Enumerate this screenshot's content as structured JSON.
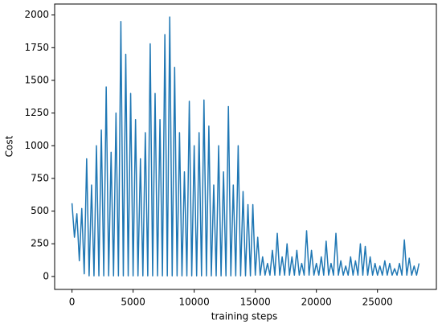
{
  "chart_data": {
    "type": "line",
    "xlabel": "training steps",
    "ylabel": "Cost",
    "color": "#1f77b4",
    "x": [
      0,
      200,
      400,
      600,
      800,
      1000,
      1200,
      1400,
      1600,
      1800,
      2000,
      2200,
      2400,
      2600,
      2800,
      3000,
      3200,
      3400,
      3600,
      3800,
      4000,
      4200,
      4400,
      4600,
      4800,
      5000,
      5200,
      5400,
      5600,
      5800,
      6000,
      6200,
      6400,
      6600,
      6800,
      7000,
      7200,
      7400,
      7600,
      7800,
      8000,
      8200,
      8400,
      8600,
      8800,
      9000,
      9200,
      9400,
      9600,
      9800,
      10000,
      10200,
      10400,
      10600,
      10800,
      11000,
      11200,
      11400,
      11600,
      11800,
      12000,
      12200,
      12400,
      12600,
      12800,
      13000,
      13200,
      13400,
      13600,
      13800,
      14000,
      14200,
      14400,
      14600,
      14800,
      15000,
      15200,
      15400,
      15600,
      15800,
      16000,
      16200,
      16400,
      16600,
      16800,
      17000,
      17200,
      17400,
      17600,
      17800,
      18000,
      18200,
      18400,
      18600,
      18800,
      19000,
      19200,
      19400,
      19600,
      19800,
      20000,
      20200,
      20400,
      20600,
      20800,
      21000,
      21200,
      21400,
      21600,
      21800,
      22000,
      22200,
      22400,
      22600,
      22800,
      23000,
      23200,
      23400,
      23600,
      23800,
      24000,
      24200,
      24400,
      24600,
      24800,
      25000,
      25200,
      25400,
      25600,
      25800,
      26000,
      26200,
      26400,
      26600,
      26800,
      27000,
      27200,
      27400,
      27600,
      27800,
      28000,
      28200,
      28400
    ],
    "values": [
      560,
      300,
      480,
      120,
      520,
      20,
      900,
      5,
      700,
      5,
      1000,
      5,
      1120,
      5,
      1450,
      5,
      950,
      5,
      1250,
      5,
      1950,
      5,
      1700,
      5,
      1400,
      5,
      1200,
      5,
      900,
      5,
      1100,
      5,
      1780,
      5,
      1400,
      5,
      1200,
      5,
      1850,
      5,
      1985,
      5,
      1600,
      5,
      1100,
      5,
      800,
      5,
      1340,
      5,
      1000,
      5,
      1100,
      5,
      1350,
      5,
      1150,
      5,
      700,
      5,
      1000,
      5,
      800,
      5,
      1300,
      5,
      700,
      5,
      1000,
      5,
      650,
      5,
      550,
      5,
      550,
      10,
      300,
      10,
      150,
      10,
      100,
      10,
      200,
      10,
      330,
      10,
      150,
      10,
      250,
      10,
      150,
      10,
      200,
      10,
      100,
      10,
      350,
      10,
      200,
      10,
      100,
      10,
      150,
      10,
      270,
      10,
      100,
      10,
      330,
      10,
      120,
      10,
      80,
      10,
      150,
      10,
      120,
      10,
      250,
      10,
      230,
      10,
      150,
      10,
      100,
      10,
      80,
      10,
      120,
      10,
      100,
      10,
      60,
      10,
      100,
      10,
      280,
      10,
      140,
      10,
      80,
      10,
      100
    ],
    "xlim": [
      -1420,
      29820
    ],
    "ylim": [
      -99,
      2084
    ],
    "xticks": [
      0,
      5000,
      10000,
      15000,
      20000,
      25000
    ],
    "yticks": [
      0,
      250,
      500,
      750,
      1000,
      1250,
      1500,
      1750,
      2000
    ]
  }
}
